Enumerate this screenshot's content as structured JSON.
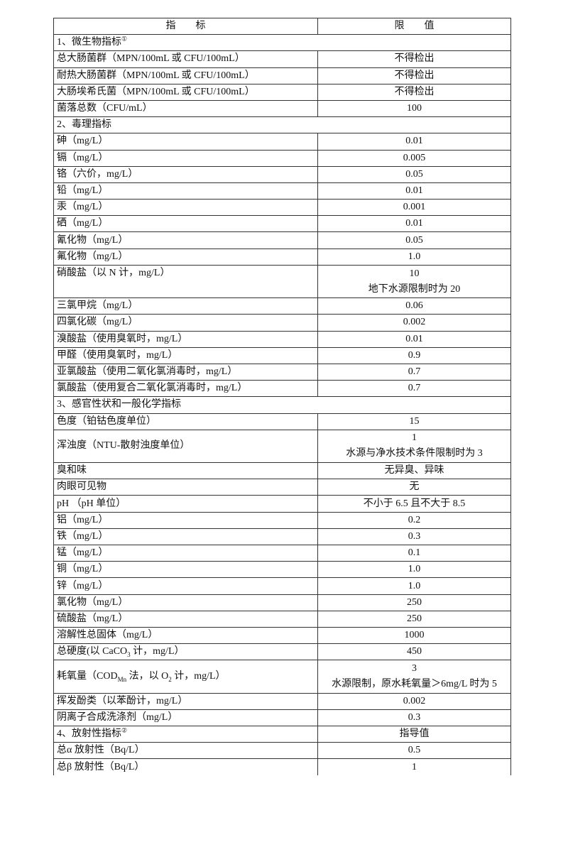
{
  "header": {
    "indicator": "指　　标",
    "limit": "限　　值"
  },
  "rows": [
    {
      "section": true,
      "label": [
        {
          "t": "1、微生物指标"
        },
        {
          "sup": "①"
        }
      ]
    },
    {
      "label": [
        {
          "t": "总大肠菌群（MPN/100mL 或 CFU/100mL）"
        }
      ],
      "value": [
        "不得检出"
      ]
    },
    {
      "label": [
        {
          "t": "耐热大肠菌群（MPN/100mL 或 CFU/100mL）"
        }
      ],
      "value": [
        "不得检出"
      ]
    },
    {
      "label": [
        {
          "t": "大肠埃希氏菌（MPN/100mL 或 CFU/100mL）"
        }
      ],
      "value": [
        "不得检出"
      ]
    },
    {
      "label": [
        {
          "t": "菌落总数（CFU/mL）"
        }
      ],
      "value": [
        "100"
      ]
    },
    {
      "section": true,
      "label": [
        {
          "t": "2、毒理指标"
        }
      ]
    },
    {
      "label": [
        {
          "t": "砷（mg/L）"
        }
      ],
      "value": [
        "0.01"
      ]
    },
    {
      "label": [
        {
          "t": "镉（mg/L）"
        }
      ],
      "value": [
        "0.005"
      ]
    },
    {
      "label": [
        {
          "t": "铬（六价，mg/L）"
        }
      ],
      "value": [
        "0.05"
      ]
    },
    {
      "label": [
        {
          "t": "铅（mg/L）"
        }
      ],
      "value": [
        "0.01"
      ]
    },
    {
      "label": [
        {
          "t": "汞（mg/L）"
        }
      ],
      "value": [
        "0.001"
      ]
    },
    {
      "label": [
        {
          "t": "硒（mg/L）"
        }
      ],
      "value": [
        "0.01"
      ]
    },
    {
      "label": [
        {
          "t": "氰化物（mg/L）"
        }
      ],
      "value": [
        "0.05"
      ]
    },
    {
      "label": [
        {
          "t": "氟化物（mg/L）"
        }
      ],
      "value": [
        "1.0"
      ]
    },
    {
      "label": [
        {
          "t": "硝酸盐（以 N 计，mg/L）"
        }
      ],
      "value": [
        "10",
        "地下水源限制时为 20"
      ],
      "top": true
    },
    {
      "label": [
        {
          "t": "三氯甲烷（mg/L）"
        }
      ],
      "value": [
        "0.06"
      ]
    },
    {
      "label": [
        {
          "t": "四氯化碳（mg/L）"
        }
      ],
      "value": [
        "0.002"
      ]
    },
    {
      "label": [
        {
          "t": "溴酸盐（使用臭氧时，mg/L）"
        }
      ],
      "value": [
        "0.01"
      ]
    },
    {
      "label": [
        {
          "t": "甲醛（使用臭氧时，mg/L）"
        }
      ],
      "value": [
        "0.9"
      ]
    },
    {
      "label": [
        {
          "t": "亚氯酸盐（使用二氧化氯消毒时，mg/L）"
        }
      ],
      "value": [
        "0.7"
      ]
    },
    {
      "label": [
        {
          "t": "氯酸盐（使用复合二氧化氯消毒时，mg/L）"
        }
      ],
      "value": [
        "0.7"
      ]
    },
    {
      "section": true,
      "label": [
        {
          "t": "3、感官性状和一般化学指标"
        }
      ]
    },
    {
      "label": [
        {
          "t": "色度（铂钴色度单位）"
        }
      ],
      "value": [
        "15"
      ]
    },
    {
      "label": [
        {
          "t": "浑浊度（NTU-散射浊度单位）"
        }
      ],
      "value": [
        "1",
        "水源与净水技术条件限制时为 3"
      ]
    },
    {
      "label": [
        {
          "t": "臭和味"
        }
      ],
      "value": [
        "无异臭、异味"
      ]
    },
    {
      "label": [
        {
          "t": "肉眼可见物"
        }
      ],
      "value": [
        "无"
      ]
    },
    {
      "label": [
        {
          "t": "pH （pH 单位）"
        }
      ],
      "value": [
        "不小于 6.5 且不大于 8.5"
      ]
    },
    {
      "label": [
        {
          "t": "铝（mg/L）"
        }
      ],
      "value": [
        "0.2"
      ]
    },
    {
      "label": [
        {
          "t": "铁（mg/L）"
        }
      ],
      "value": [
        "0.3"
      ]
    },
    {
      "label": [
        {
          "t": "锰（mg/L）"
        }
      ],
      "value": [
        "0.1"
      ]
    },
    {
      "label": [
        {
          "t": "铜（mg/L）"
        }
      ],
      "value": [
        "1.0"
      ]
    },
    {
      "label": [
        {
          "t": "锌（mg/L）"
        }
      ],
      "value": [
        "1.0"
      ]
    },
    {
      "label": [
        {
          "t": "氯化物（mg/L）"
        }
      ],
      "value": [
        "250"
      ]
    },
    {
      "label": [
        {
          "t": "硫酸盐（mg/L）"
        }
      ],
      "value": [
        "250"
      ]
    },
    {
      "label": [
        {
          "t": "溶解性总固体（mg/L）"
        }
      ],
      "value": [
        "1000"
      ]
    },
    {
      "label": [
        {
          "t": "总硬度(以 CaCO"
        },
        {
          "sub": "3"
        },
        {
          "t": " 计，mg/L）"
        }
      ],
      "value": [
        "450"
      ]
    },
    {
      "label": [
        {
          "t": "耗氧量（COD"
        },
        {
          "sub": "Mn"
        },
        {
          "t": " 法，以 O"
        },
        {
          "sub": "2"
        },
        {
          "t": " 计，mg/L）"
        }
      ],
      "value": [
        "3",
        "水源限制，原水耗氧量＞6mg/L 时为 5"
      ]
    },
    {
      "label": [
        {
          "t": "挥发酚类（以苯酚计，mg/L）"
        }
      ],
      "value": [
        "0.002"
      ]
    },
    {
      "label": [
        {
          "t": "阴离子合成洗涤剂（mg/L）"
        }
      ],
      "value": [
        "0.3"
      ]
    },
    {
      "label": [
        {
          "t": "4、放射性指标"
        },
        {
          "sup": "②"
        }
      ],
      "value": [
        "指导值"
      ]
    },
    {
      "label": [
        {
          "t": "总α 放射性（Bq/L）"
        }
      ],
      "value": [
        "0.5"
      ]
    },
    {
      "label": [
        {
          "t": "总β 放射性（Bq/L）"
        }
      ],
      "value": [
        "1"
      ]
    }
  ]
}
